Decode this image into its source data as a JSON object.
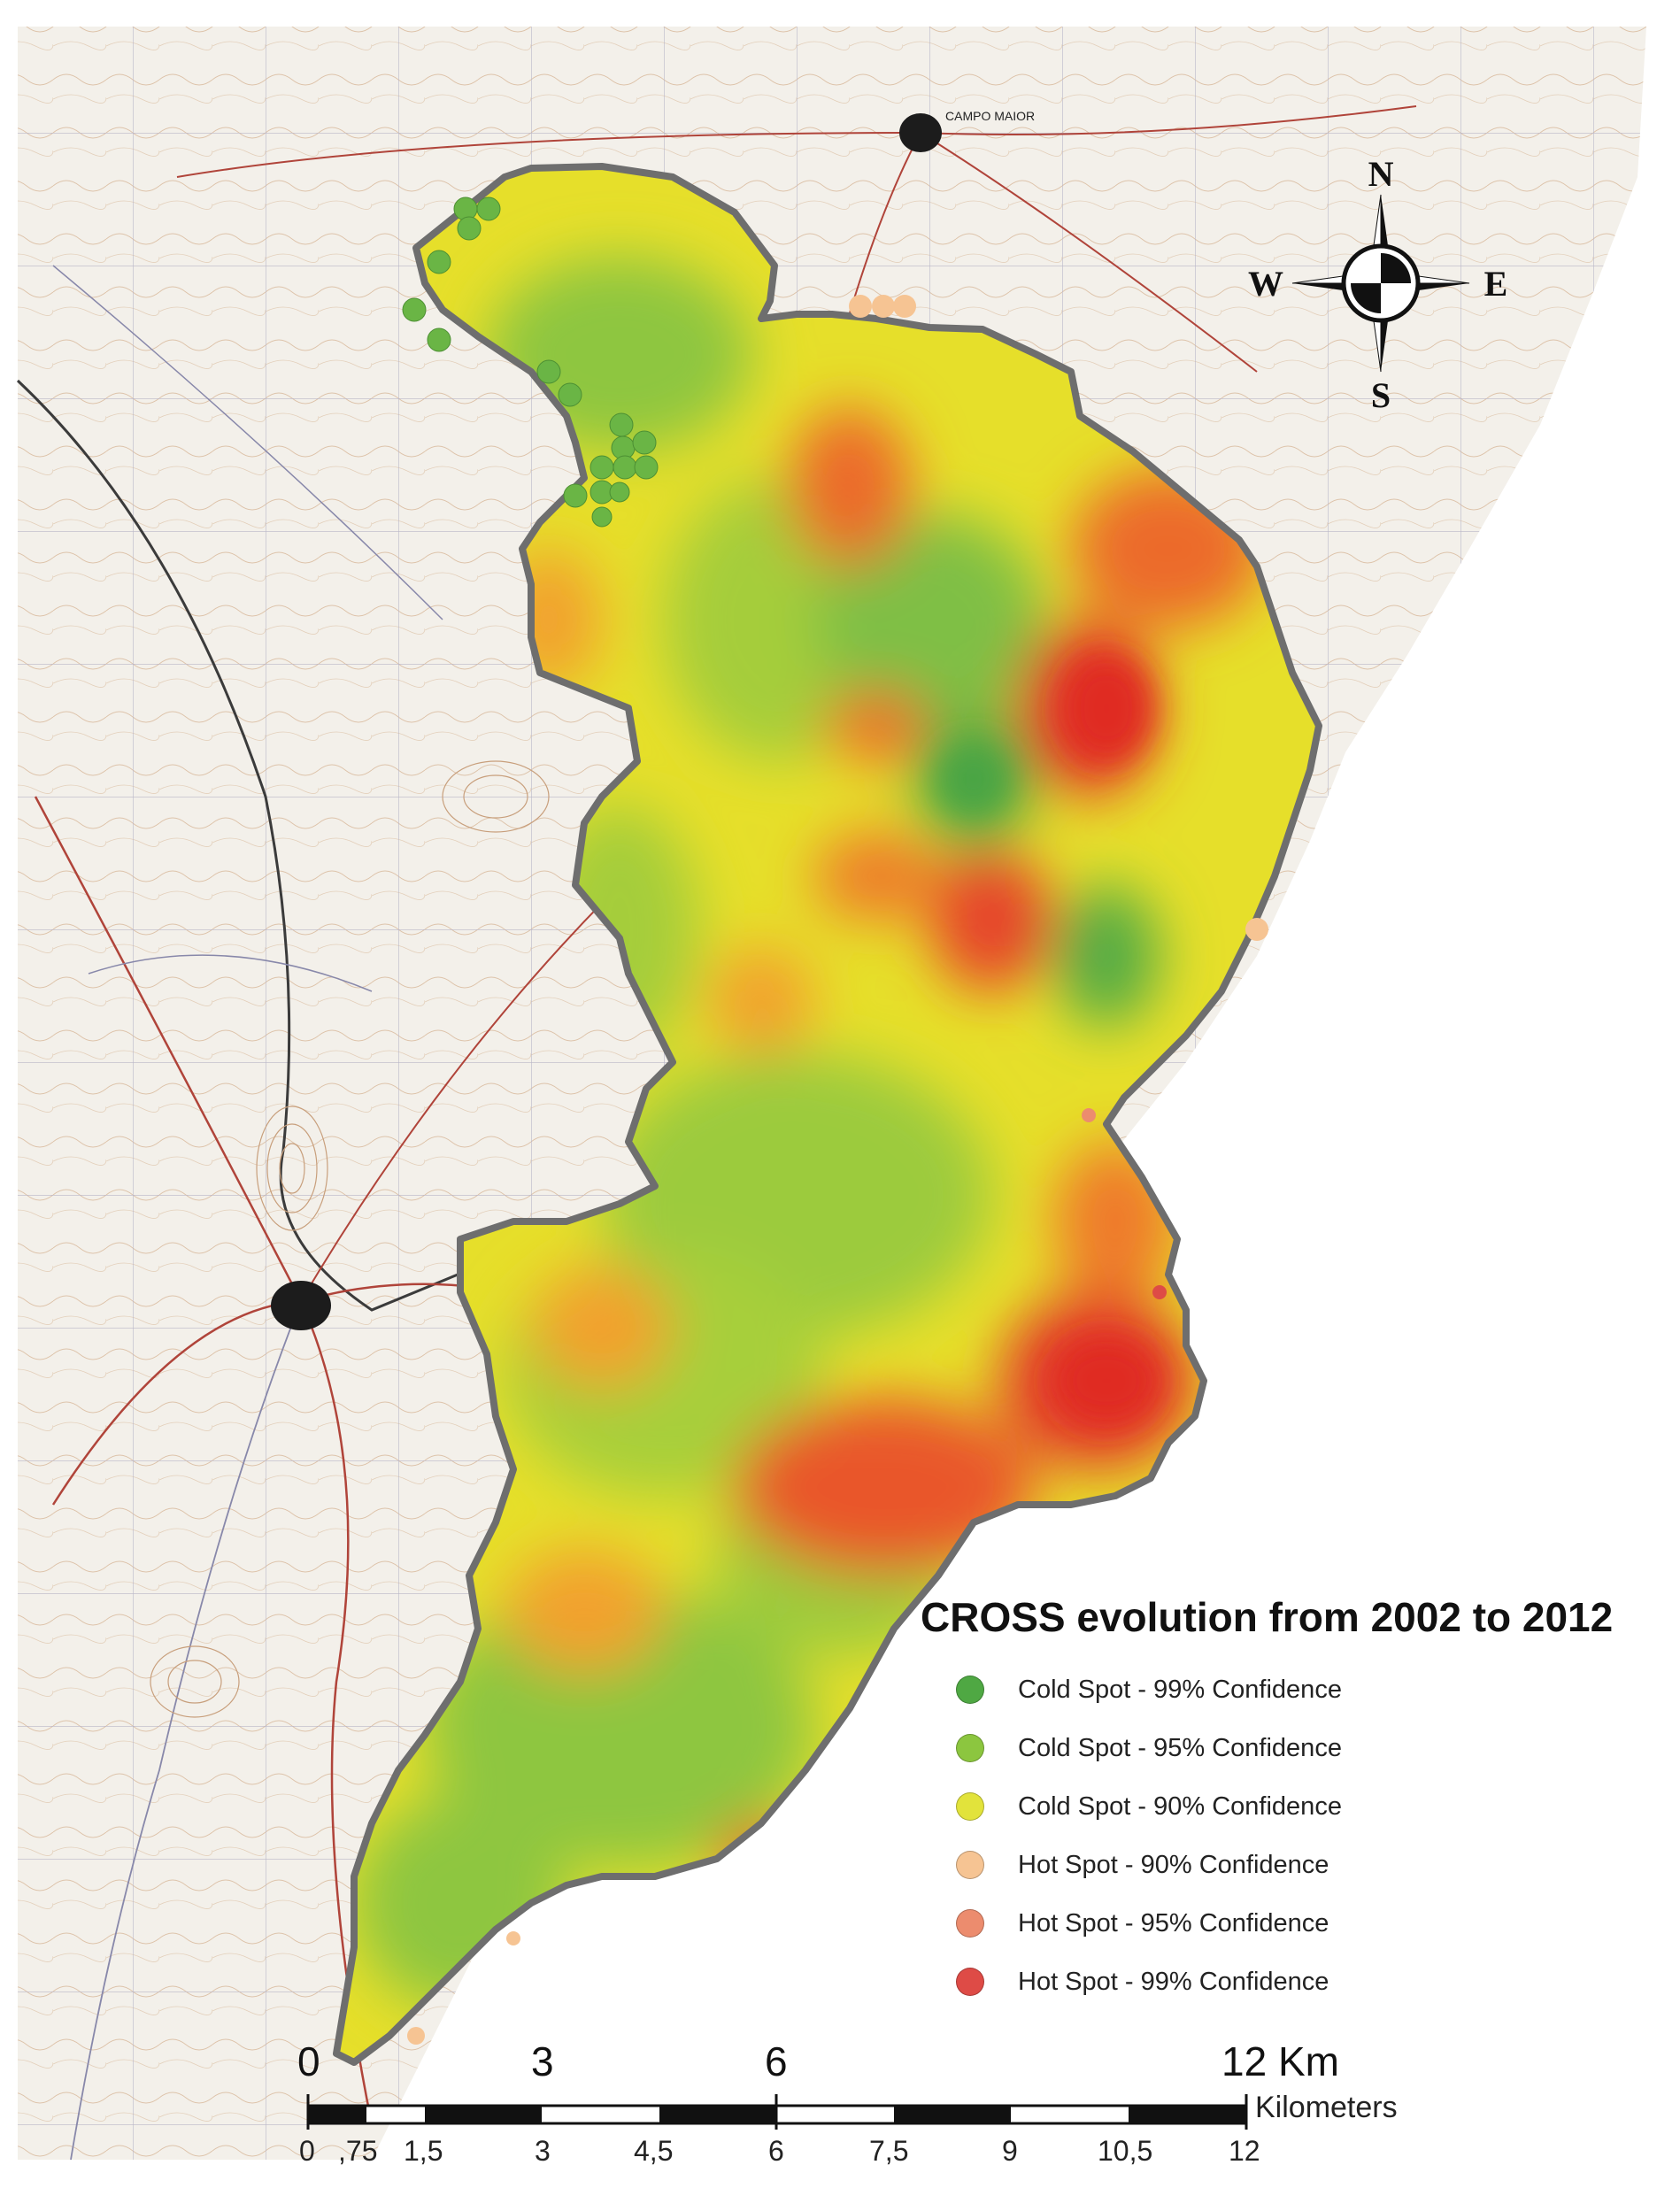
{
  "map": {
    "title": "CROSS evolution from 2002 to 2012",
    "towns": [
      "CAMPO MAIOR"
    ],
    "colors": {
      "outline": "#6e6e6e",
      "base_yellow": "#e8e22a",
      "yellow_green": "#b8d43a",
      "green": "#7fbf45",
      "dark_green": "#4fa843",
      "orange": "#f2a12e",
      "red": "#e23a2a"
    }
  },
  "legend": {
    "items": [
      {
        "label": "Cold Spot - 99% Confidence",
        "color": "#4fa843"
      },
      {
        "label": "Cold Spot - 95% Confidence",
        "color": "#8cc63f"
      },
      {
        "label": "Cold Spot - 90% Confidence",
        "color": "#e2e33b"
      },
      {
        "label": "Hot Spot - 90% Confidence",
        "color": "#f6c493"
      },
      {
        "label": "Hot Spot - 95% Confidence",
        "color": "#ec8c6e"
      },
      {
        "label": "Hot Spot - 99% Confidence",
        "color": "#de4b46"
      }
    ]
  },
  "compass": {
    "n": "N",
    "s": "S",
    "e": "E",
    "w": "W"
  },
  "scale_bar": {
    "major_labels": [
      "0",
      "3",
      "6",
      "12 Km"
    ],
    "minor_labels": [
      "0",
      ",75",
      "1,5",
      "3",
      "4,5",
      "6",
      "7,5",
      "9",
      "10,5",
      "12"
    ],
    "unit": "Kilometers"
  }
}
